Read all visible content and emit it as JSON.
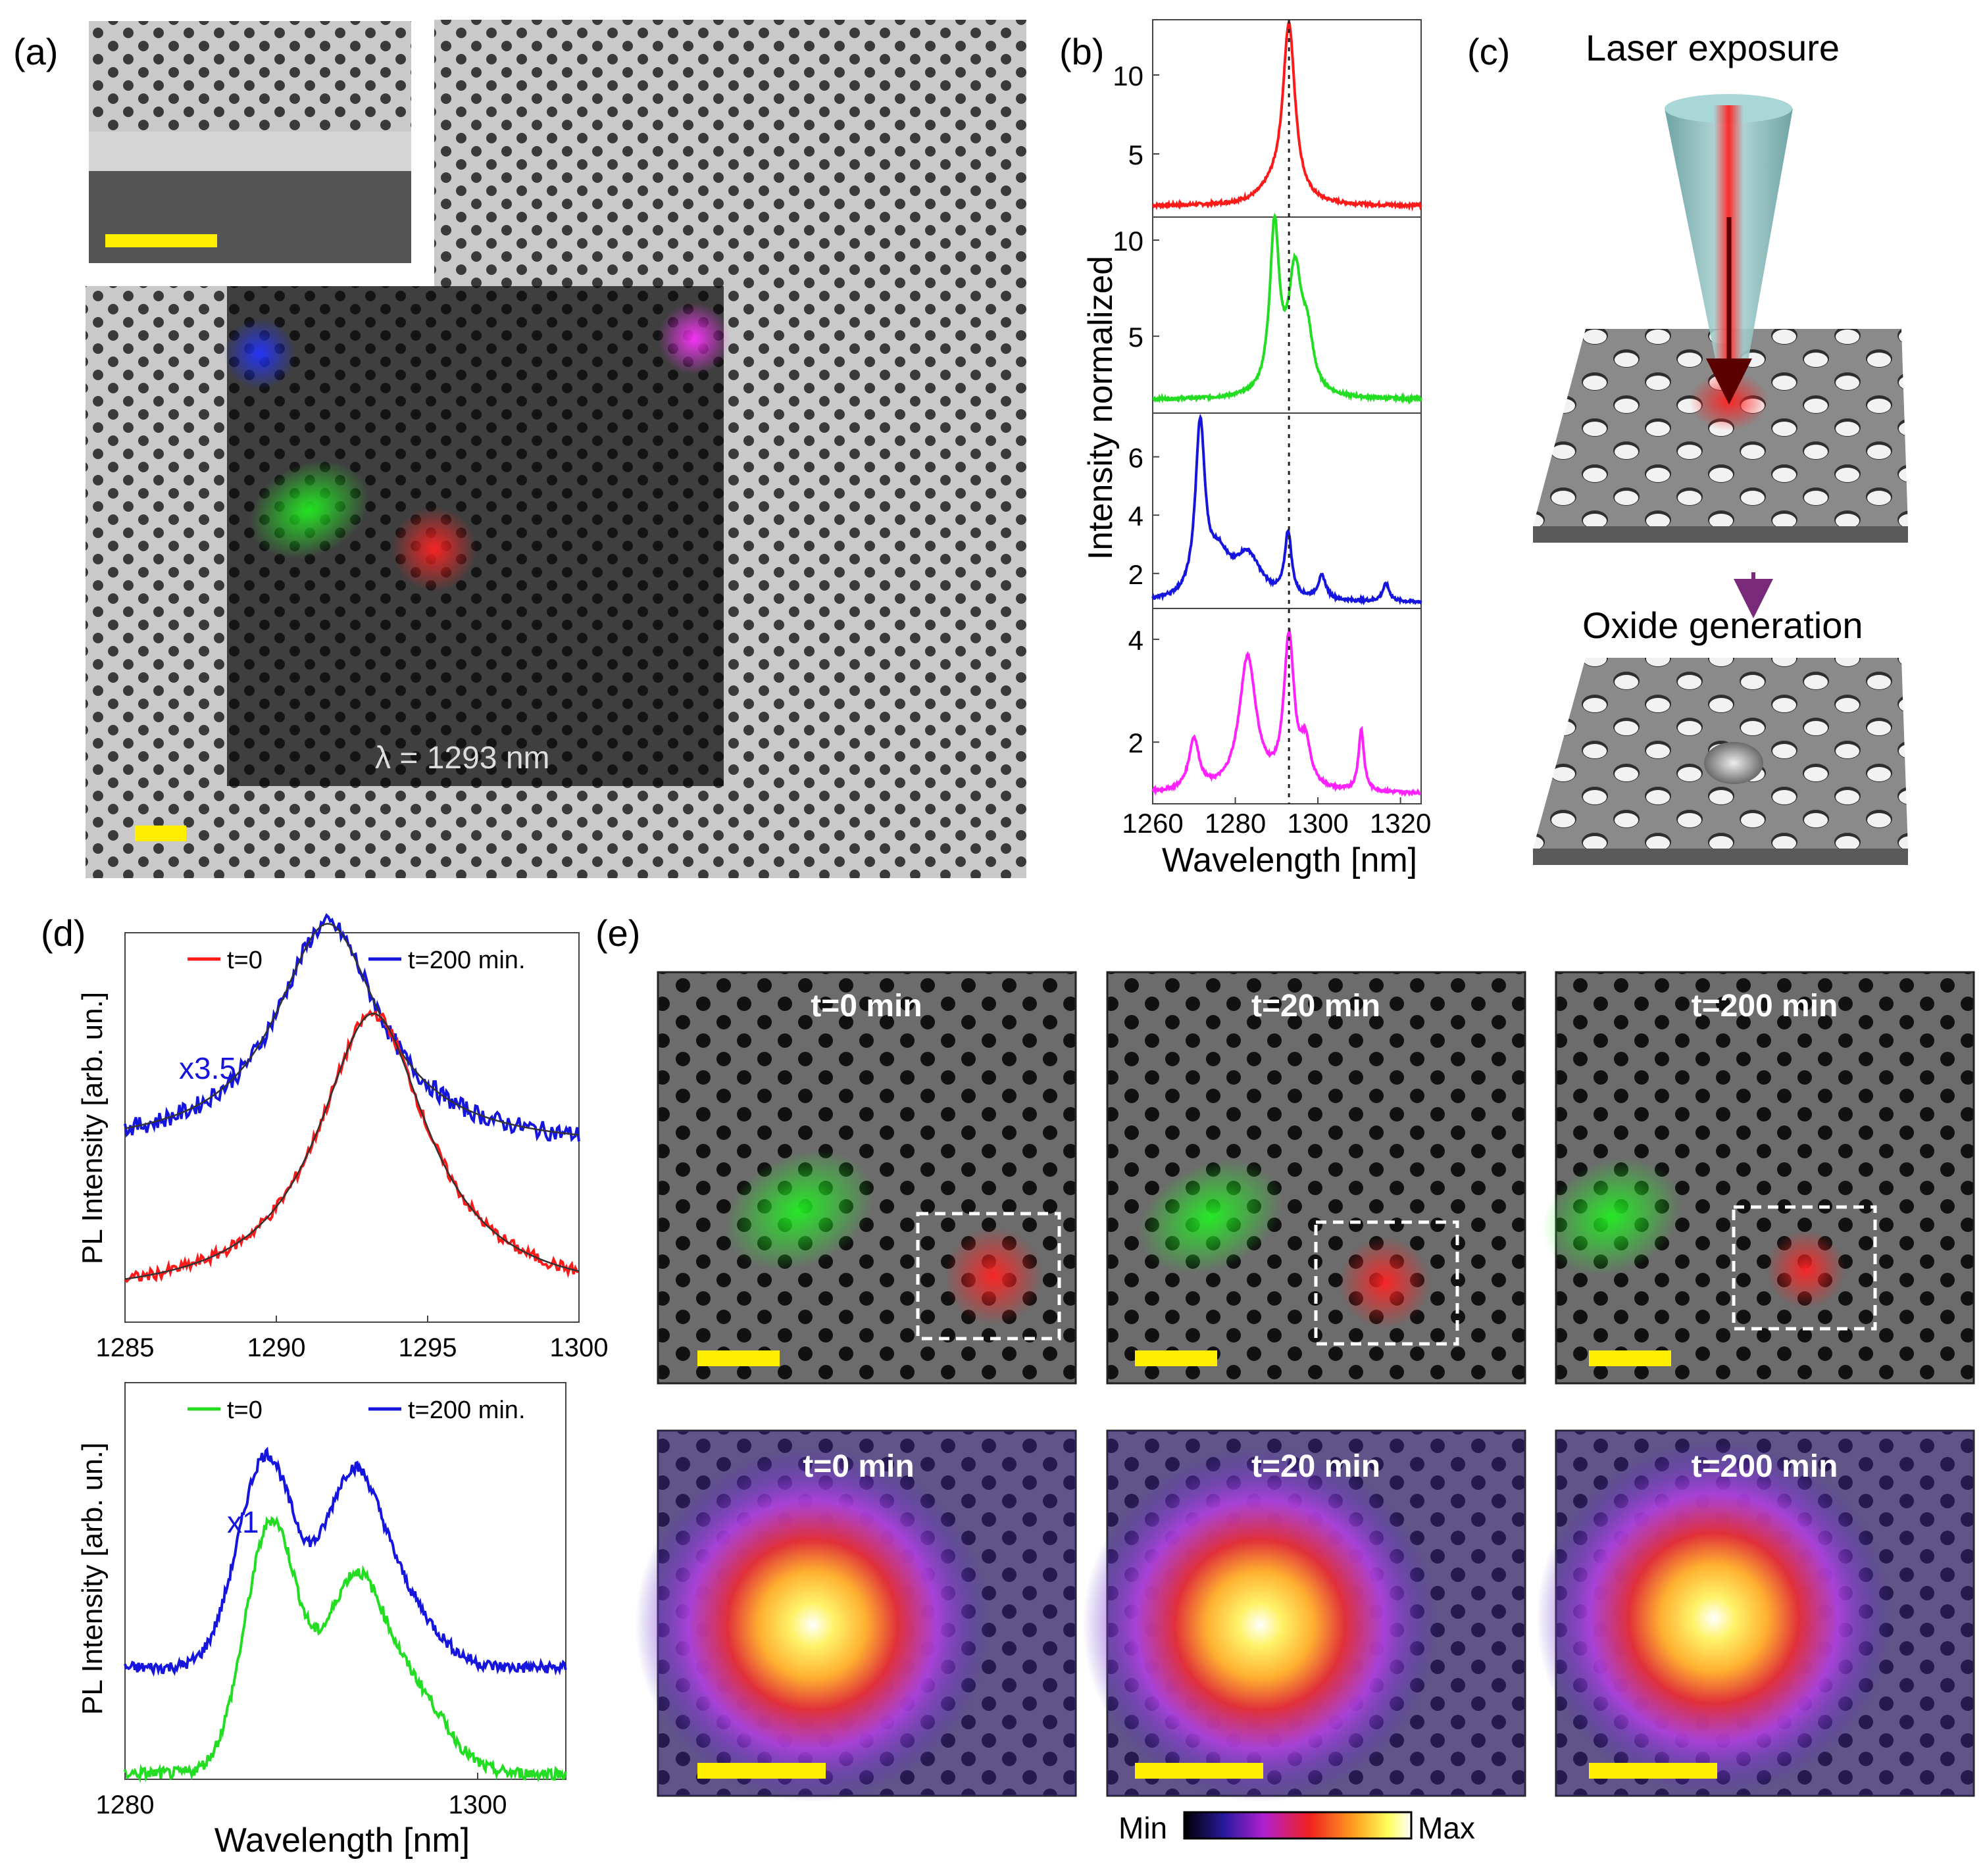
{
  "panel_labels": {
    "a": "(a)",
    "b": "(b)",
    "c": "(c)",
    "d": "(d)",
    "e": "(e)"
  },
  "panel_a": {
    "wavelength_label": "λ = 1293 nm"
  },
  "panel_c": {
    "laser_label": "Laser exposure",
    "oxide_label": "Oxide generation"
  },
  "panel_e": {
    "time_labels": [
      "t=0 min",
      "t=20 min",
      "t=200 min"
    ],
    "colorbar_min": "Min",
    "colorbar_max": "Max"
  },
  "colors": {
    "red": "#ff1a1a",
    "green": "#22dd22",
    "blue": "#1515dd",
    "magenta": "#ff22ff",
    "scale_bar": "#ffee00",
    "purple_arrow": "#7a2a7a"
  },
  "chart_data": [
    {
      "id": "b",
      "type": "line",
      "ylabel": "Intensity normalized",
      "xlabel": "Wavelength [nm]",
      "xlim": [
        1260,
        1325
      ],
      "xticks": [
        "1260",
        "1280",
        "1300",
        "1320"
      ],
      "xtick_values": [
        1260,
        1280,
        1300,
        1320
      ],
      "dashed_line_x": 1293,
      "subplots": [
        {
          "color": "#ff1a1a",
          "ylim": [
            1,
            13.5
          ],
          "yticks": [
            "5",
            "10"
          ],
          "ytick_values": [
            5,
            10
          ],
          "baseline": 1.7,
          "peaks": [
            {
              "x": 1293,
              "h": 11.2,
              "w": 1.8
            },
            {
              "x": 1289,
              "h": 0.8,
              "w": 4
            }
          ]
        },
        {
          "color": "#22dd22",
          "ylim": [
            1,
            11.2
          ],
          "yticks": [
            "5",
            "10"
          ],
          "ytick_values": [
            5,
            10
          ],
          "baseline": 1.7,
          "peaks": [
            {
              "x": 1289.5,
              "h": 8.6,
              "w": 1.4
            },
            {
              "x": 1294.5,
              "h": 6.3,
              "w": 2.0
            },
            {
              "x": 1297.5,
              "h": 2.4,
              "w": 1.6
            }
          ]
        },
        {
          "color": "#1515dd",
          "ylim": [
            0.8,
            7.5
          ],
          "yticks": [
            "2",
            "4",
            "6"
          ],
          "ytick_values": [
            2,
            4,
            6
          ],
          "baseline": 1.0,
          "peaks": [
            {
              "x": 1271.5,
              "h": 5.8,
              "w": 1.4
            },
            {
              "x": 1276,
              "h": 1.3,
              "w": 3
            },
            {
              "x": 1283,
              "h": 1.5,
              "w": 4
            },
            {
              "x": 1292.8,
              "h": 2.2,
              "w": 1
            },
            {
              "x": 1301,
              "h": 0.8,
              "w": 1.2
            },
            {
              "x": 1316.5,
              "h": 0.6,
              "w": 1
            }
          ]
        },
        {
          "color": "#ff22ff",
          "ylim": [
            0.8,
            4.6
          ],
          "yticks": [
            "2",
            "4"
          ],
          "ytick_values": [
            2,
            4
          ],
          "baseline": 1.0,
          "peaks": [
            {
              "x": 1270,
              "h": 1.0,
              "w": 1.5
            },
            {
              "x": 1283,
              "h": 2.6,
              "w": 2.5
            },
            {
              "x": 1293,
              "h": 2.9,
              "w": 1.5
            },
            {
              "x": 1297,
              "h": 0.8,
              "w": 1.5
            },
            {
              "x": 1310.5,
              "h": 1.2,
              "w": 0.8
            }
          ]
        }
      ]
    },
    {
      "id": "d-top",
      "type": "line",
      "ylabel": "PL Intensity [arb. un.]",
      "xlim": [
        1285,
        1300
      ],
      "xticks": [
        "1285",
        "1290",
        "1295",
        "1300"
      ],
      "xtick_values": [
        1285,
        1290,
        1295,
        1300
      ],
      "ylim": [
        0,
        1.3
      ],
      "annotation": "x3.5",
      "legend": [
        {
          "label": "t=0",
          "color": "#ff1a1a"
        },
        {
          "label": "t=200 min.",
          "color": "#1515dd"
        }
      ],
      "series": [
        {
          "name": "t=200 min.",
          "color": "#1515dd",
          "center": 1291.7,
          "hwhm": 2.1,
          "amp": 0.75,
          "offset": 0.5,
          "noise": 0.015
        },
        {
          "name": "t=0",
          "color": "#ff1a1a",
          "center": 1293.2,
          "hwhm": 2.2,
          "amp": 0.95,
          "offset": 0.0,
          "noise": 0.01
        }
      ]
    },
    {
      "id": "d-bottom",
      "type": "line",
      "ylabel": "PL Intensity [arb. un.]",
      "xlabel": "Wavelength [nm]",
      "xlim": [
        1280,
        1305
      ],
      "xticks": [
        "1280",
        "1300"
      ],
      "xtick_values": [
        1280,
        1300
      ],
      "ylim": [
        0,
        1.35
      ],
      "annotation": "x1",
      "legend": [
        {
          "label": "t=0",
          "color": "#22dd22"
        },
        {
          "label": "t=200 min.",
          "color": "#1515dd"
        }
      ],
      "series": [
        {
          "name": "t=200 min.",
          "color": "#1515dd",
          "offset": 0.38,
          "peaks": [
            {
              "x": 1288.0,
              "h": 0.72,
              "w": 1.6
            },
            {
              "x": 1292.8,
              "h": 0.58,
              "w": 1.6
            },
            {
              "x": 1295.5,
              "h": 0.22,
              "w": 2.0
            }
          ],
          "noise": 0.02
        },
        {
          "name": "t=0",
          "color": "#22dd22",
          "offset": 0.02,
          "peaks": [
            {
              "x": 1288.3,
              "h": 0.85,
              "w": 1.5
            },
            {
              "x": 1293.0,
              "h": 0.64,
              "w": 1.7
            },
            {
              "x": 1296.5,
              "h": 0.25,
              "w": 1.8
            }
          ],
          "noise": 0.02
        }
      ]
    }
  ]
}
